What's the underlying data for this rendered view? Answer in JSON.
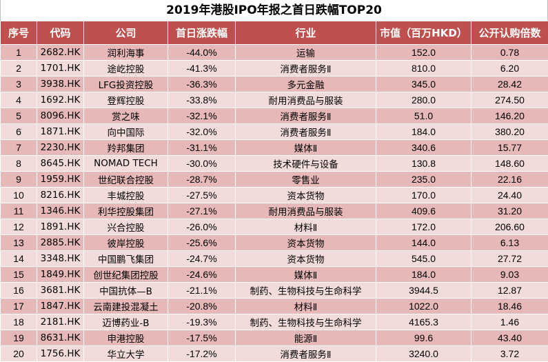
{
  "title": "2019年港股IPO年报之首日跌幅TOP20",
  "headers": [
    "序号",
    "代码",
    "公司",
    "首日涨跌幅",
    "行业",
    "市值（百万HKD）",
    "公开认购倍数"
  ],
  "rows": [
    [
      "1",
      "2682.HK",
      "润利海事",
      "-44.0%",
      "运输",
      "152.0",
      "0.78"
    ],
    [
      "2",
      "1701.HK",
      "途屹控股",
      "-41.3%",
      "消费者服务Ⅱ",
      "810.0",
      "6.20"
    ],
    [
      "3",
      "3938.HK",
      "LFG投资控股",
      "-36.3%",
      "多元金融",
      "345.0",
      "28.42"
    ],
    [
      "4",
      "1692.HK",
      "登辉控股",
      "-33.8%",
      "耐用消费品与服装",
      "280.0",
      "274.50"
    ],
    [
      "5",
      "8096.HK",
      "赏之味",
      "-32.1%",
      "消费者服务Ⅱ",
      "51.0",
      "146.20"
    ],
    [
      "6",
      "1871.HK",
      "向中国际",
      "-32.0%",
      "消费者服务Ⅱ",
      "184.0",
      "380.20"
    ],
    [
      "7",
      "2230.HK",
      "羚邦集团",
      "-31.1%",
      "媒体Ⅱ",
      "340.6",
      "15.77"
    ],
    [
      "8",
      "8645.HK",
      "NOMAD TECH",
      "-30.0%",
      "技术硬件与设备",
      "130.8",
      "148.60"
    ],
    [
      "9",
      "1959.HK",
      "世纪联合控股",
      "-28.7%",
      "零售业",
      "235.0",
      "22.16"
    ],
    [
      "10",
      "8216.HK",
      "丰城控股",
      "-27.5%",
      "资本货物",
      "170.0",
      "24.40"
    ],
    [
      "11",
      "1346.HK",
      "利华控股集团",
      "-27.1%",
      "耐用消费品与服装",
      "409.6",
      "31.20"
    ],
    [
      "12",
      "1891.HK",
      "兴合控股",
      "-26.0%",
      "材料Ⅱ",
      "172.0",
      "206.60"
    ],
    [
      "13",
      "2885.HK",
      "彼岸控股",
      "-25.6%",
      "资本货物",
      "144.0",
      "6.13"
    ],
    [
      "14",
      "3348.HK",
      "中国鹏飞集团",
      "-24.7%",
      "资本货物",
      "545.0",
      "27.72"
    ],
    [
      "15",
      "1849.HK",
      "创世纪集团控股",
      "-24.6%",
      "媒体Ⅱ",
      "184.0",
      "9.03"
    ],
    [
      "16",
      "3681.HK",
      "中国抗体—B",
      "-21.1%",
      "制药、生物科技与生命科学",
      "3944.5",
      "12.87"
    ],
    [
      "17",
      "1847.HK",
      "云南建投混凝土",
      "-20.8%",
      "材料Ⅱ",
      "1022.0",
      "18.46"
    ],
    [
      "18",
      "2181.HK",
      "迈博药业-B",
      "-19.3%",
      "制药、生物科技与生命科学",
      "4165.3",
      "1.46"
    ],
    [
      "19",
      "8631.HK",
      "申港控股",
      "-17.5%",
      "能源Ⅱ",
      "99.6",
      "43.40"
    ],
    [
      "20",
      "1756.HK",
      "华立大学",
      "-17.2%",
      "消费者服务Ⅱ",
      "3240.0",
      "3.72"
    ]
  ]
}
